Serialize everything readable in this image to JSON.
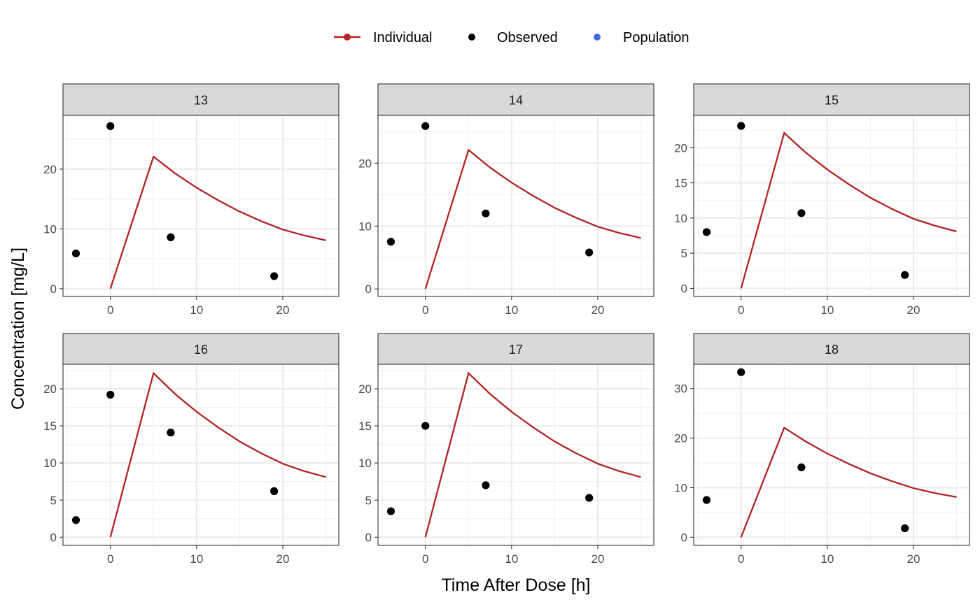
{
  "chart_data": {
    "type": "line",
    "xlabel": "Time After Dose [h]",
    "ylabel": "Concentration [mg/L]",
    "xlim": [
      -5.5,
      26.5
    ],
    "xticks": [
      0,
      10,
      20
    ],
    "grid": true,
    "facet_layout": "3 columns x 2 rows",
    "legend": {
      "position": "top",
      "entries": [
        {
          "name": "Individual",
          "mark": "line+point",
          "color": "#b22222"
        },
        {
          "name": "Observed",
          "mark": "point",
          "color": "#000000"
        },
        {
          "name": "Population",
          "mark": "point",
          "color": "#4169e1"
        }
      ]
    },
    "individual_curve": {
      "x": [
        0,
        5,
        7.5,
        10,
        12.5,
        15,
        17.5,
        20,
        22.5,
        25
      ],
      "y": [
        0,
        22.1,
        19.3,
        16.9,
        14.8,
        12.9,
        11.3,
        9.9,
        8.9,
        8.1
      ]
    },
    "panels": [
      {
        "label": "13",
        "ylim": [
          -1.3,
          29
        ],
        "yticks": [
          0,
          10,
          20
        ],
        "observed": {
          "x": [
            -4,
            0,
            7,
            19
          ],
          "y": [
            5.9,
            27.2,
            8.6,
            2.1
          ]
        }
      },
      {
        "label": "14",
        "ylim": [
          -1.2,
          27.6
        ],
        "yticks": [
          0,
          10,
          20
        ],
        "observed": {
          "x": [
            -4,
            0,
            7,
            19
          ],
          "y": [
            7.5,
            25.9,
            12.0,
            5.8
          ]
        }
      },
      {
        "label": "15",
        "ylim": [
          -1.15,
          24.6
        ],
        "yticks": [
          0,
          5,
          10,
          15,
          20
        ],
        "observed": {
          "x": [
            -4,
            0,
            7,
            19
          ],
          "y": [
            8.0,
            23.1,
            10.7,
            1.9
          ]
        }
      },
      {
        "label": "16",
        "ylim": [
          -1.1,
          23.3
        ],
        "yticks": [
          0,
          5,
          10,
          15,
          20
        ],
        "observed": {
          "x": [
            -4,
            0,
            7,
            19
          ],
          "y": [
            2.3,
            19.2,
            14.1,
            6.2
          ]
        }
      },
      {
        "label": "17",
        "ylim": [
          -1.1,
          23.3
        ],
        "yticks": [
          0,
          5,
          10,
          15,
          20
        ],
        "observed": {
          "x": [
            -4,
            0,
            7,
            19
          ],
          "y": [
            3.5,
            15.0,
            7.0,
            5.3
          ]
        }
      },
      {
        "label": "18",
        "ylim": [
          -1.65,
          34.9
        ],
        "yticks": [
          0,
          10,
          20,
          30
        ],
        "observed": {
          "x": [
            -4,
            0,
            7,
            19
          ],
          "y": [
            7.5,
            33.3,
            14.1,
            1.8
          ]
        }
      }
    ]
  }
}
